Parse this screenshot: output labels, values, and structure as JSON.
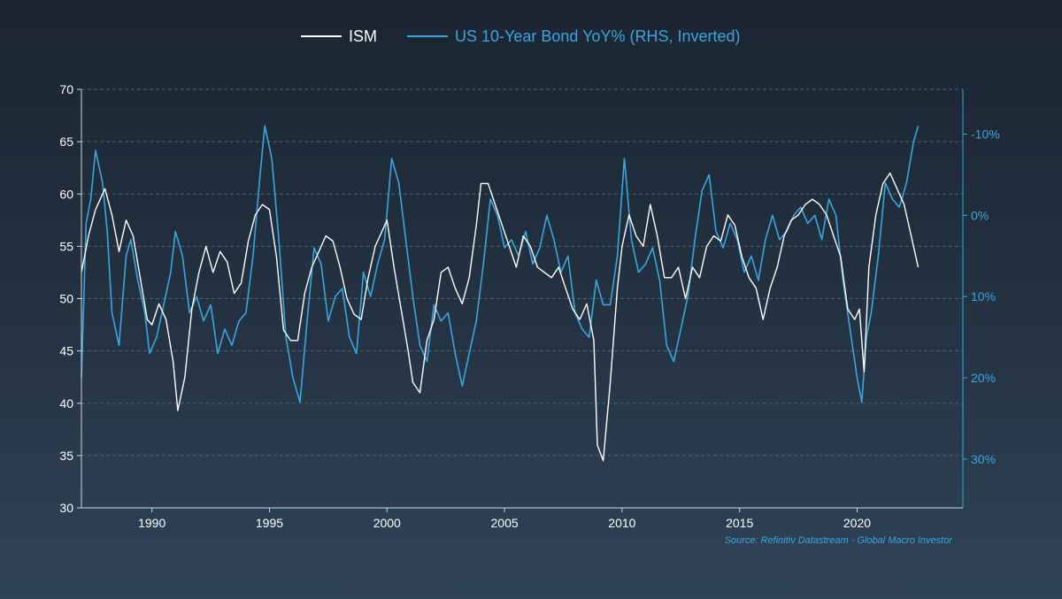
{
  "chart_data": {
    "type": "line",
    "title": "",
    "source": "Source: Refinitiv Datastream - Global Macro Investor",
    "legend_position": "top-center",
    "grid": "horizontal dashed",
    "x_axis": {
      "range": [
        1987.0,
        2024.5
      ],
      "ticks": [
        "1990",
        "1995",
        "2000",
        "2005",
        "2010",
        "2015",
        "2020"
      ]
    },
    "y_left": {
      "range": [
        30,
        70
      ],
      "ticks": [
        "30",
        "35",
        "40",
        "45",
        "50",
        "55",
        "60",
        "65",
        "70"
      ]
    },
    "y_right": {
      "inverted": true,
      "range_percent": [
        -15.5,
        36.0
      ],
      "ticks": [
        "-10%",
        "0%",
        "10%",
        "20%",
        "30%"
      ]
    },
    "series": [
      {
        "name": "ISM",
        "axis": "left",
        "color": "#ffffff",
        "x": [
          1987.0,
          1987.3,
          1987.6,
          1988.0,
          1988.3,
          1988.6,
          1988.9,
          1989.2,
          1989.5,
          1989.8,
          1990.0,
          1990.3,
          1990.6,
          1990.9,
          1991.1,
          1991.4,
          1991.7,
          1992.0,
          1992.3,
          1992.6,
          1992.9,
          1993.2,
          1993.5,
          1993.8,
          1994.1,
          1994.4,
          1994.7,
          1995.0,
          1995.3,
          1995.6,
          1995.9,
          1996.2,
          1996.5,
          1996.8,
          1997.1,
          1997.4,
          1997.7,
          1998.0,
          1998.3,
          1998.6,
          1998.9,
          1999.2,
          1999.5,
          1999.8,
          2000.0,
          2000.3,
          2000.6,
          2000.9,
          2001.1,
          2001.4,
          2001.7,
          2002.0,
          2002.3,
          2002.6,
          2002.9,
          2003.2,
          2003.5,
          2003.8,
          2004.0,
          2004.3,
          2004.6,
          2004.9,
          2005.2,
          2005.5,
          2005.8,
          2006.1,
          2006.4,
          2006.7,
          2007.0,
          2007.3,
          2007.6,
          2007.9,
          2008.2,
          2008.5,
          2008.8,
          2008.95,
          2009.2,
          2009.5,
          2009.8,
          2010.0,
          2010.3,
          2010.6,
          2010.9,
          2011.2,
          2011.5,
          2011.8,
          2012.1,
          2012.4,
          2012.7,
          2013.0,
          2013.3,
          2013.6,
          2013.9,
          2014.2,
          2014.5,
          2014.8,
          2015.1,
          2015.4,
          2015.7,
          2016.0,
          2016.3,
          2016.6,
          2016.9,
          2017.2,
          2017.5,
          2017.8,
          2018.1,
          2018.4,
          2018.7,
          2019.0,
          2019.3,
          2019.6,
          2019.9,
          2020.1,
          2020.3,
          2020.5,
          2020.8,
          2021.1,
          2021.4,
          2021.7,
          2022.0,
          2022.3,
          2022.6
        ],
        "y": [
          52.5,
          56,
          58.5,
          60.5,
          58,
          54.5,
          57.5,
          56,
          52,
          48,
          47.5,
          49.5,
          48,
          44,
          39.3,
          42.5,
          49,
          52.5,
          55,
          52.5,
          54.5,
          53.5,
          50.5,
          51.5,
          55.5,
          58,
          59,
          58.5,
          54,
          47,
          46,
          46,
          50.5,
          53,
          54.5,
          56,
          55.5,
          53,
          50,
          48.5,
          48,
          52,
          55,
          56.5,
          57.5,
          53,
          49,
          45,
          42,
          41,
          46,
          48,
          52.5,
          53,
          51,
          49.5,
          52,
          57,
          61,
          61,
          59,
          57,
          55,
          53,
          56,
          55,
          53,
          52.5,
          52,
          53,
          51,
          49,
          48,
          49.5,
          46,
          36,
          34.5,
          42,
          51,
          55,
          58,
          56,
          55,
          59,
          56,
          52,
          52,
          53,
          50,
          53,
          52,
          55,
          56,
          55.5,
          58,
          57,
          54,
          52,
          51,
          48,
          51,
          53,
          56,
          57.5,
          58,
          59,
          59.5,
          59,
          58,
          56,
          54,
          49,
          48,
          49,
          43,
          53,
          58,
          61,
          62,
          60.5,
          59,
          56,
          53
        ]
      },
      {
        "name": "US 10-Year Bond YoY% (RHS, Inverted)",
        "axis": "right",
        "color": "#3aa6de",
        "x": [
          1987.0,
          1987.2,
          1987.4,
          1987.6,
          1987.9,
          1988.1,
          1988.3,
          1988.6,
          1988.9,
          1989.1,
          1989.4,
          1989.7,
          1989.9,
          1990.2,
          1990.5,
          1990.8,
          1991.0,
          1991.3,
          1991.6,
          1991.9,
          1992.2,
          1992.5,
          1992.8,
          1993.1,
          1993.4,
          1993.7,
          1994.0,
          1994.3,
          1994.6,
          1994.8,
          1995.1,
          1995.4,
          1995.7,
          1996.0,
          1996.3,
          1996.6,
          1996.9,
          1997.2,
          1997.5,
          1997.8,
          1998.1,
          1998.4,
          1998.7,
          1999.0,
          1999.3,
          1999.6,
          1999.9,
          2000.2,
          2000.5,
          2000.8,
          2001.1,
          2001.4,
          2001.7,
          2002.0,
          2002.3,
          2002.6,
          2002.9,
          2003.2,
          2003.5,
          2003.8,
          2004.1,
          2004.4,
          2004.7,
          2005.0,
          2005.3,
          2005.6,
          2005.9,
          2006.2,
          2006.5,
          2006.8,
          2007.1,
          2007.4,
          2007.7,
          2008.0,
          2008.3,
          2008.6,
          2008.9,
          2009.2,
          2009.5,
          2009.8,
          2010.1,
          2010.4,
          2010.7,
          2011.0,
          2011.3,
          2011.6,
          2011.9,
          2012.2,
          2012.5,
          2012.8,
          2013.1,
          2013.4,
          2013.7,
          2014.0,
          2014.3,
          2014.6,
          2014.9,
          2015.2,
          2015.5,
          2015.8,
          2016.1,
          2016.4,
          2016.7,
          2017.0,
          2017.3,
          2017.6,
          2017.9,
          2018.2,
          2018.5,
          2018.8,
          2019.1,
          2019.4,
          2019.7,
          2020.0,
          2020.2,
          2020.4,
          2020.6,
          2020.9,
          2021.2,
          2021.5,
          2021.8,
          2022.1,
          2022.4,
          2022.6
        ],
        "y": [
          20,
          1,
          -2,
          -8,
          -4,
          2,
          12,
          16,
          5,
          3,
          8,
          12,
          17,
          15,
          11,
          7,
          2,
          5,
          12,
          10,
          13,
          11,
          17,
          14,
          16,
          13,
          12,
          5,
          -5,
          -11,
          -7,
          3,
          15,
          20,
          23,
          13,
          4,
          6,
          13,
          10,
          9,
          15,
          17,
          7,
          10,
          6,
          3,
          -7,
          -4,
          3,
          10,
          16,
          18,
          11,
          13,
          12,
          17,
          21,
          17,
          13,
          6,
          -2,
          0,
          4,
          3,
          5,
          2,
          6,
          4,
          0,
          3,
          7,
          5,
          12,
          14,
          15,
          8,
          11,
          11,
          5,
          -7,
          3,
          7,
          6,
          4,
          8,
          16,
          18,
          14,
          10,
          3,
          -3,
          -5,
          2,
          4,
          1,
          3,
          7,
          5,
          8,
          3,
          0,
          3,
          2,
          0,
          -1,
          1,
          0,
          3,
          -2,
          0,
          8,
          14,
          20,
          23,
          15,
          12,
          5,
          -4,
          -2,
          -1,
          -4,
          -9,
          -11
        ]
      }
    ]
  },
  "legend": {
    "ism_label": "ISM",
    "bond_label": "US 10-Year Bond YoY% (RHS, Inverted)"
  }
}
